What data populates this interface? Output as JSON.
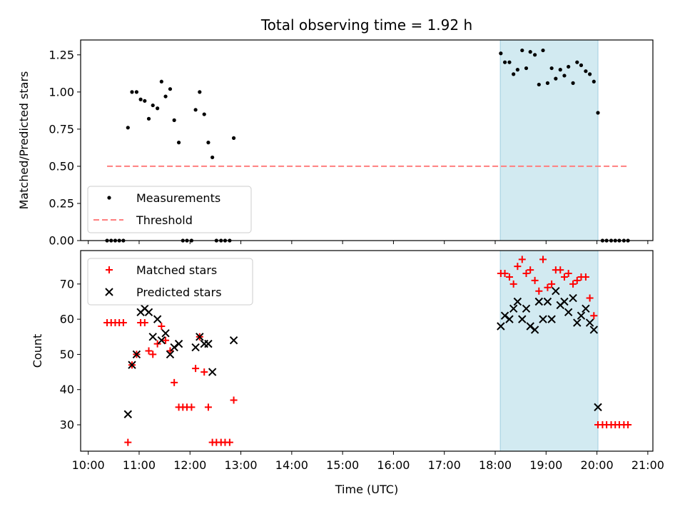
{
  "figure": {
    "title": "Total observing time = 1.92 h",
    "xlabel": "Time (UTC)",
    "x_ticks": [
      "10:00",
      "11:00",
      "12:00",
      "13:00",
      "14:00",
      "15:00",
      "16:00",
      "17:00",
      "18:00",
      "19:00",
      "20:00",
      "21:00"
    ],
    "x_range_hours": [
      9.85,
      21.1
    ]
  },
  "chart_data": [
    {
      "type": "scatter",
      "panel": "top",
      "ylabel": "Matched/Predicted stars",
      "ylim": [
        0,
        1.35
      ],
      "y_ticks": [
        "0.00",
        "0.25",
        "0.50",
        "0.75",
        "1.00",
        "1.25"
      ],
      "legend": {
        "placement": "lower-left",
        "entries": [
          "Measurements",
          "Threshold"
        ]
      },
      "shaded_interval_hours": [
        18.1,
        20.02
      ],
      "shade_color": "#add8e6",
      "threshold": {
        "name": "Threshold",
        "y": 0.5,
        "x_start": 10.37,
        "x_end": 20.62,
        "color": "#ff7f7f"
      },
      "series": [
        {
          "name": "Measurements",
          "color": "#000000",
          "points": [
            [
              10.37,
              0
            ],
            [
              10.45,
              0
            ],
            [
              10.53,
              0
            ],
            [
              10.61,
              0
            ],
            [
              10.69,
              0
            ],
            [
              10.78,
              0.76
            ],
            [
              10.86,
              1.0
            ],
            [
              10.95,
              1.0
            ],
            [
              11.03,
              0.95
            ],
            [
              11.11,
              0.94
            ],
            [
              11.19,
              0.82
            ],
            [
              11.27,
              0.91
            ],
            [
              11.36,
              0.89
            ],
            [
              11.44,
              1.07
            ],
            [
              11.52,
              0.97
            ],
            [
              11.61,
              1.02
            ],
            [
              11.69,
              0.81
            ],
            [
              11.78,
              0.66
            ],
            [
              11.86,
              0
            ],
            [
              11.94,
              0
            ],
            [
              12.03,
              0
            ],
            [
              12.11,
              0.88
            ],
            [
              12.19,
              1.0
            ],
            [
              12.28,
              0.85
            ],
            [
              12.36,
              0.66
            ],
            [
              12.44,
              0.56
            ],
            [
              12.52,
              0
            ],
            [
              12.61,
              0
            ],
            [
              12.69,
              0
            ],
            [
              12.78,
              0
            ],
            [
              12.86,
              0.69
            ],
            [
              18.11,
              1.26
            ],
            [
              18.19,
              1.2
            ],
            [
              18.28,
              1.2
            ],
            [
              18.36,
              1.12
            ],
            [
              18.44,
              1.15
            ],
            [
              18.53,
              1.28
            ],
            [
              18.61,
              1.16
            ],
            [
              18.69,
              1.27
            ],
            [
              18.78,
              1.25
            ],
            [
              18.86,
              1.05
            ],
            [
              18.94,
              1.28
            ],
            [
              19.03,
              1.06
            ],
            [
              19.11,
              1.16
            ],
            [
              19.19,
              1.09
            ],
            [
              19.28,
              1.15
            ],
            [
              19.36,
              1.11
            ],
            [
              19.44,
              1.17
            ],
            [
              19.53,
              1.06
            ],
            [
              19.61,
              1.2
            ],
            [
              19.69,
              1.18
            ],
            [
              19.78,
              1.14
            ],
            [
              19.86,
              1.12
            ],
            [
              19.94,
              1.07
            ],
            [
              20.02,
              0.86
            ],
            [
              20.11,
              0
            ],
            [
              20.19,
              0
            ],
            [
              20.28,
              0
            ],
            [
              20.36,
              0
            ],
            [
              20.44,
              0
            ],
            [
              20.53,
              0
            ],
            [
              20.61,
              0
            ]
          ]
        }
      ]
    },
    {
      "type": "scatter",
      "panel": "bottom",
      "ylabel": "Count",
      "ylim": [
        22.5,
        79.5
      ],
      "y_ticks": [
        "30",
        "40",
        "50",
        "60",
        "70"
      ],
      "legend": {
        "placement": "upper-left",
        "entries": [
          "Matched stars",
          "Predicted stars"
        ]
      },
      "shaded_interval_hours": [
        18.1,
        20.02
      ],
      "shade_color": "#add8e6",
      "series": [
        {
          "name": "Matched stars",
          "marker": "plus",
          "color": "#ff0000",
          "points": [
            [
              10.37,
              59
            ],
            [
              10.45,
              59
            ],
            [
              10.53,
              59
            ],
            [
              10.61,
              59
            ],
            [
              10.69,
              59
            ],
            [
              10.78,
              25
            ],
            [
              10.86,
              47
            ],
            [
              10.95,
              50
            ],
            [
              11.03,
              59
            ],
            [
              11.11,
              59
            ],
            [
              11.19,
              51
            ],
            [
              11.27,
              50
            ],
            [
              11.36,
              53
            ],
            [
              11.44,
              58
            ],
            [
              11.52,
              54
            ],
            [
              11.61,
              51
            ],
            [
              11.69,
              42
            ],
            [
              11.78,
              35
            ],
            [
              11.86,
              35
            ],
            [
              11.94,
              35
            ],
            [
              12.03,
              35
            ],
            [
              12.11,
              46
            ],
            [
              12.19,
              55
            ],
            [
              12.28,
              45
            ],
            [
              12.36,
              35
            ],
            [
              12.44,
              25
            ],
            [
              12.52,
              25
            ],
            [
              12.61,
              25
            ],
            [
              12.69,
              25
            ],
            [
              12.78,
              25
            ],
            [
              12.86,
              37
            ],
            [
              18.11,
              73
            ],
            [
              18.19,
              73
            ],
            [
              18.28,
              72
            ],
            [
              18.36,
              70
            ],
            [
              18.44,
              75
            ],
            [
              18.53,
              77
            ],
            [
              18.61,
              73
            ],
            [
              18.69,
              74
            ],
            [
              18.78,
              71
            ],
            [
              18.86,
              68
            ],
            [
              18.94,
              77
            ],
            [
              19.03,
              69
            ],
            [
              19.11,
              70
            ],
            [
              19.19,
              74
            ],
            [
              19.28,
              74
            ],
            [
              19.36,
              72
            ],
            [
              19.44,
              73
            ],
            [
              19.53,
              70
            ],
            [
              19.61,
              71
            ],
            [
              19.69,
              72
            ],
            [
              19.78,
              72
            ],
            [
              19.86,
              66
            ],
            [
              19.94,
              61
            ],
            [
              20.02,
              30
            ],
            [
              20.11,
              30
            ],
            [
              20.19,
              30
            ],
            [
              20.28,
              30
            ],
            [
              20.36,
              30
            ],
            [
              20.44,
              30
            ],
            [
              20.53,
              30
            ],
            [
              20.61,
              30
            ]
          ]
        },
        {
          "name": "Predicted stars",
          "marker": "x",
          "color": "#000000",
          "points": [
            [
              10.78,
              33
            ],
            [
              10.86,
              47
            ],
            [
              10.95,
              50
            ],
            [
              11.03,
              62
            ],
            [
              11.11,
              63
            ],
            [
              11.19,
              62
            ],
            [
              11.27,
              55
            ],
            [
              11.36,
              60
            ],
            [
              11.44,
              54
            ],
            [
              11.52,
              56
            ],
            [
              11.61,
              50
            ],
            [
              11.69,
              52
            ],
            [
              11.78,
              53
            ],
            [
              12.11,
              52
            ],
            [
              12.19,
              55
            ],
            [
              12.28,
              53
            ],
            [
              12.36,
              53
            ],
            [
              12.44,
              45
            ],
            [
              12.86,
              54
            ],
            [
              18.11,
              58
            ],
            [
              18.19,
              61
            ],
            [
              18.28,
              60
            ],
            [
              18.36,
              63
            ],
            [
              18.44,
              65
            ],
            [
              18.53,
              60
            ],
            [
              18.61,
              63
            ],
            [
              18.69,
              58
            ],
            [
              18.78,
              57
            ],
            [
              18.86,
              65
            ],
            [
              18.94,
              60
            ],
            [
              19.03,
              65
            ],
            [
              19.11,
              60
            ],
            [
              19.19,
              68
            ],
            [
              19.28,
              64
            ],
            [
              19.36,
              65
            ],
            [
              19.44,
              62
            ],
            [
              19.53,
              66
            ],
            [
              19.61,
              59
            ],
            [
              19.69,
              61
            ],
            [
              19.78,
              63
            ],
            [
              19.86,
              59
            ],
            [
              19.94,
              57
            ],
            [
              20.02,
              35
            ]
          ]
        }
      ]
    }
  ]
}
